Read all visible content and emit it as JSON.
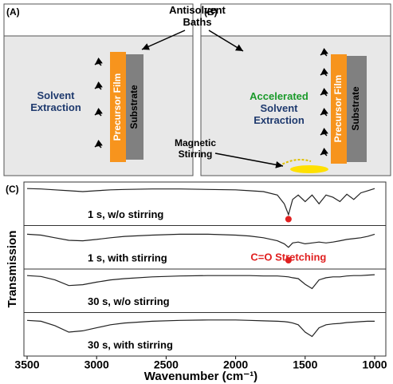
{
  "panels": {
    "a_label": "(A)",
    "b_label": "(B)",
    "c_label": "(C)"
  },
  "diagram": {
    "antisolvent": "Antisolvent Baths",
    "a_text": "Solvent Extraction",
    "film": "Precursor Film",
    "substrate": "Substrate",
    "accelerated": "Accelerated",
    "b_text": "Solvent Extraction",
    "stirring": "Magnetic Stirring"
  },
  "chart_data": {
    "type": "line",
    "x_label": "Wavenumber (cm⁻¹)",
    "y_label": "Transmission",
    "x": [
      3500,
      3400,
      3300,
      3200,
      3100,
      3000,
      2900,
      2800,
      2600,
      2400,
      2200,
      2000,
      1900,
      1800,
      1700,
      1650,
      1620,
      1590,
      1550,
      1500,
      1450,
      1400,
      1350,
      1300,
      1250,
      1200,
      1150,
      1100,
      1050,
      1000
    ],
    "xlim": [
      3500,
      1000
    ],
    "xticks": [
      3500,
      3000,
      2500,
      2000,
      1500,
      1000
    ],
    "ylim": [
      0,
      1
    ],
    "series": [
      {
        "name": "1 s, w/o stirring",
        "color": "#222222",
        "values": [
          0.85,
          0.84,
          0.82,
          0.8,
          0.78,
          0.8,
          0.82,
          0.83,
          0.84,
          0.84,
          0.83,
          0.82,
          0.8,
          0.78,
          0.7,
          0.5,
          0.25,
          0.6,
          0.7,
          0.55,
          0.7,
          0.5,
          0.7,
          0.65,
          0.55,
          0.72,
          0.6,
          0.75,
          0.8,
          0.85
        ]
      },
      {
        "name": "1 s, with stirring",
        "color": "#222222",
        "values": [
          0.8,
          0.78,
          0.72,
          0.66,
          0.65,
          0.68,
          0.72,
          0.75,
          0.78,
          0.8,
          0.8,
          0.78,
          0.76,
          0.72,
          0.65,
          0.58,
          0.5,
          0.6,
          0.62,
          0.58,
          0.6,
          0.62,
          0.6,
          0.62,
          0.65,
          0.68,
          0.7,
          0.72,
          0.75,
          0.8
        ]
      },
      {
        "name": "30 s, w/o stirring",
        "color": "#222222",
        "values": [
          0.85,
          0.83,
          0.75,
          0.62,
          0.64,
          0.7,
          0.75,
          0.78,
          0.82,
          0.84,
          0.85,
          0.85,
          0.85,
          0.84,
          0.84,
          0.83,
          0.82,
          0.8,
          0.78,
          0.65,
          0.55,
          0.75,
          0.8,
          0.82,
          0.82,
          0.84,
          0.85,
          0.85,
          0.86,
          0.87
        ]
      },
      {
        "name": "30 s, with stirring",
        "color": "#222222",
        "values": [
          0.82,
          0.8,
          0.7,
          0.55,
          0.58,
          0.65,
          0.72,
          0.76,
          0.8,
          0.82,
          0.83,
          0.83,
          0.82,
          0.81,
          0.8,
          0.79,
          0.78,
          0.76,
          0.72,
          0.55,
          0.45,
          0.65,
          0.72,
          0.74,
          0.75,
          0.77,
          0.78,
          0.79,
          0.8,
          0.8
        ]
      }
    ],
    "annotation": {
      "text": "C=O Stretching",
      "x": 1620,
      "color": "#e02020"
    }
  }
}
